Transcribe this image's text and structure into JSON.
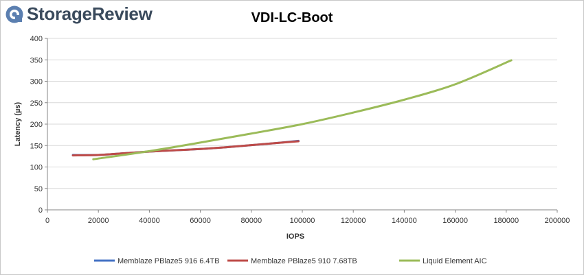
{
  "brand": {
    "name": "StorageReview",
    "icon": "storagereview-logo-icon"
  },
  "chart_data": {
    "type": "line",
    "title": "VDI-LC-Boot",
    "xlabel": "IOPS",
    "ylabel": "Latency (µs)",
    "xlim": [
      0,
      200000
    ],
    "ylim": [
      0,
      400
    ],
    "xticks": [
      0,
      20000,
      40000,
      60000,
      80000,
      100000,
      120000,
      140000,
      160000,
      180000,
      200000
    ],
    "yticks": [
      0,
      50,
      100,
      150,
      200,
      250,
      300,
      350,
      400
    ],
    "grid": "horizontal",
    "legend_position": "bottom",
    "series": [
      {
        "name": "Memblaze PBlaze5 916 6.4TB",
        "color": "#4472c4",
        "x": [
          10000,
          20000,
          30000,
          40000,
          50000,
          60000,
          70000,
          80000,
          90000,
          98500
        ],
        "y": [
          128,
          128,
          132,
          136,
          139,
          142,
          146,
          151,
          156,
          161
        ]
      },
      {
        "name": "Memblaze PBlaze5 910 7.68TB",
        "color": "#be4b48",
        "x": [
          10000,
          20000,
          30000,
          40000,
          50000,
          60000,
          70000,
          80000,
          90000,
          98500
        ],
        "y": [
          127,
          128,
          132,
          136,
          139,
          142,
          146,
          151,
          156,
          160
        ]
      },
      {
        "name": "Liquid Element AIC",
        "color": "#9bbb59",
        "x": [
          18000,
          40000,
          60000,
          80000,
          100000,
          120000,
          140000,
          160000,
          182000
        ],
        "y": [
          118,
          137,
          157,
          178,
          200,
          227,
          257,
          293,
          349
        ]
      }
    ]
  }
}
